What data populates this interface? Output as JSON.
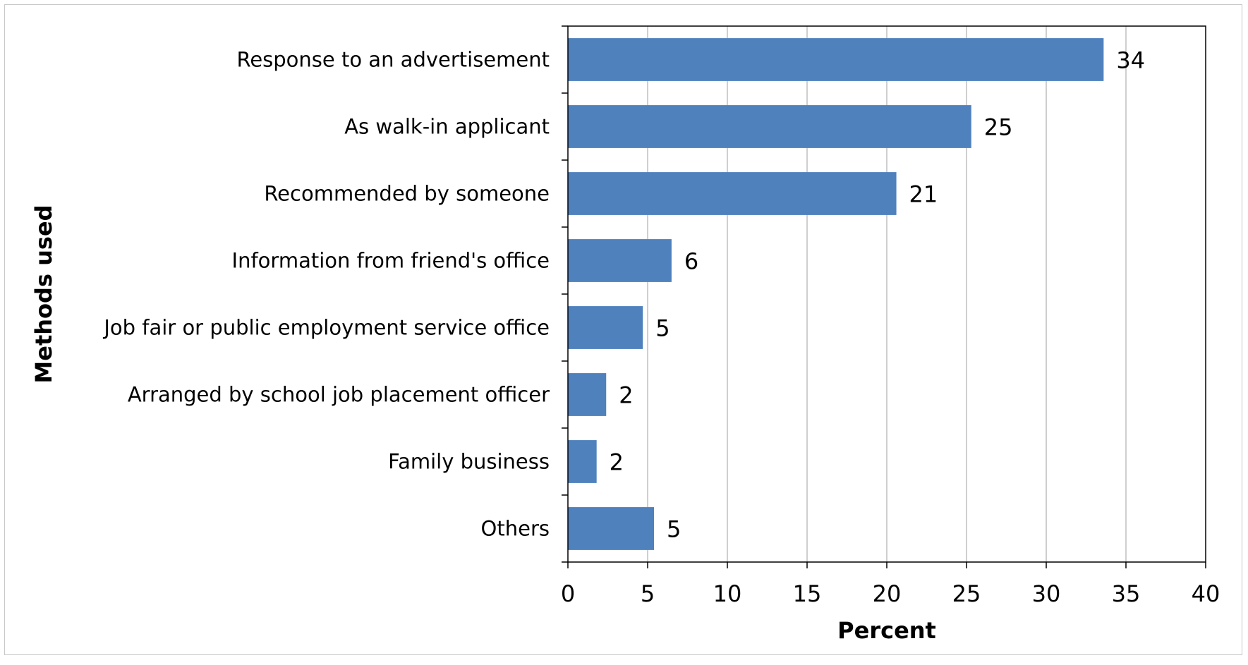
{
  "chart_data": {
    "type": "bar",
    "orientation": "horizontal",
    "xlabel": "Percent",
    "ylabel": "Methods used",
    "xlim": [
      0,
      40
    ],
    "xticks": [
      0,
      5,
      10,
      15,
      20,
      25,
      30,
      35,
      40
    ],
    "grid": "vertical",
    "legend": "none",
    "bar_color": "#4f81bd",
    "categories": [
      "Response to an advertisement",
      "As walk-in applicant",
      "Recommended by someone",
      "Information from friend's office",
      "Job fair or public employment service office",
      "Arranged by school job placement officer",
      "Family business",
      "Others"
    ],
    "values": [
      33.6,
      25.3,
      20.6,
      6.5,
      4.7,
      2.4,
      1.8,
      5.4
    ],
    "data_labels": [
      "34",
      "25",
      "21",
      "6",
      "5",
      "2",
      "2",
      "5"
    ]
  }
}
